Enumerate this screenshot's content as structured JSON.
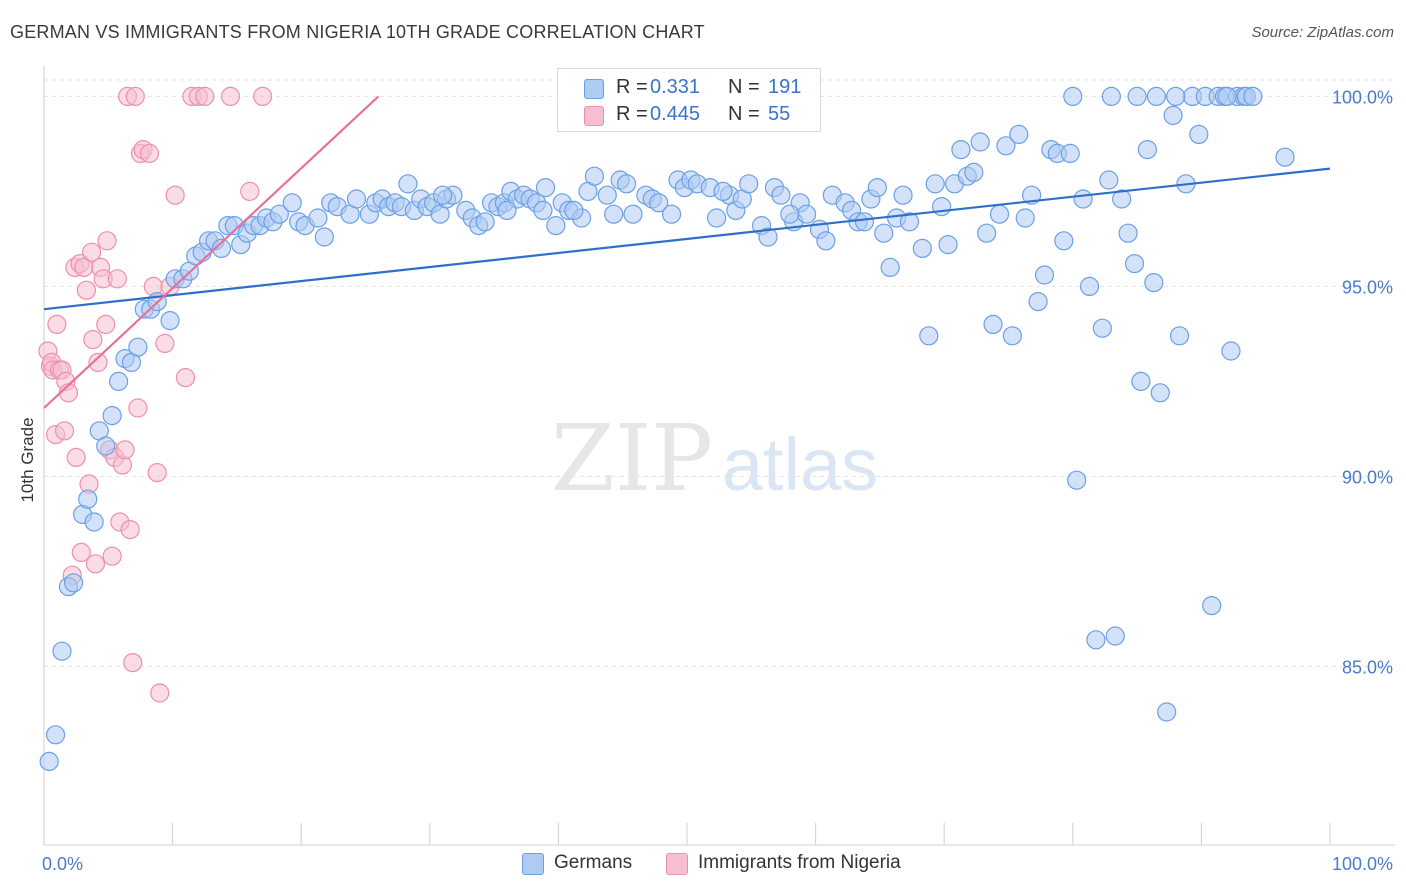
{
  "title": "GERMAN VS IMMIGRANTS FROM NIGERIA 10TH GRADE CORRELATION CHART",
  "source": "Source: ZipAtlas.com",
  "watermark": {
    "zip": "ZIP",
    "atlas": "atlas"
  },
  "colors": {
    "blue": "#6aa0e6",
    "blue_fill": "#aecbf2",
    "blue_line": "#2f6fcc",
    "pink": "#ee8fae",
    "pink_fill": "#f6bfd0",
    "pink_line": "#e8709a",
    "tick_text": "#4a7cc7",
    "grid": "#e3e3e3"
  },
  "legend": {
    "rows": [
      {
        "r_label": "R =",
        "r_value": "0.331",
        "n_label": "N =",
        "n_value": "191"
      },
      {
        "r_label": "R =",
        "r_value": "0.445",
        "n_label": "N =",
        "n_value": "55"
      }
    ],
    "bottom": [
      {
        "label": "Germans"
      },
      {
        "label": "Immigrants from Nigeria"
      }
    ]
  },
  "chart_data": {
    "type": "scatter",
    "title": "GERMAN VS IMMIGRANTS FROM NIGERIA 10TH GRADE CORRELATION CHART",
    "xlabel": "",
    "ylabel": "10th Grade",
    "xlim": [
      0,
      100
    ],
    "ylim": [
      80.3,
      100.8
    ],
    "x_tick_labels": [
      "0.0%",
      "100.0%"
    ],
    "y_ticks": [
      85,
      90,
      95,
      100
    ],
    "y_tick_labels": [
      "85.0%",
      "90.0%",
      "95.0%",
      "100.0%"
    ],
    "grid": true,
    "legend_position": "top-center",
    "series": [
      {
        "name": "Germans",
        "r": 0.331,
        "n": 191,
        "trend": {
          "x": [
            0,
            100
          ],
          "y": [
            94.4,
            98.1
          ]
        },
        "points": [
          [
            0.4,
            82.5
          ],
          [
            0.9,
            83.2
          ],
          [
            1.4,
            85.4
          ],
          [
            1.9,
            87.1
          ],
          [
            2.3,
            87.2
          ],
          [
            3.0,
            89.0
          ],
          [
            3.4,
            89.4
          ],
          [
            3.9,
            88.8
          ],
          [
            4.3,
            91.2
          ],
          [
            4.8,
            90.8
          ],
          [
            5.3,
            91.6
          ],
          [
            5.8,
            92.5
          ],
          [
            6.3,
            93.1
          ],
          [
            6.8,
            93.0
          ],
          [
            7.3,
            93.4
          ],
          [
            7.8,
            94.4
          ],
          [
            8.3,
            94.4
          ],
          [
            8.8,
            94.6
          ],
          [
            9.8,
            94.1
          ],
          [
            10.2,
            95.2
          ],
          [
            10.8,
            95.2
          ],
          [
            11.3,
            95.4
          ],
          [
            11.8,
            95.8
          ],
          [
            12.3,
            95.9
          ],
          [
            12.8,
            96.2
          ],
          [
            13.3,
            96.2
          ],
          [
            13.8,
            96.0
          ],
          [
            14.3,
            96.6
          ],
          [
            14.8,
            96.6
          ],
          [
            15.3,
            96.1
          ],
          [
            15.8,
            96.4
          ],
          [
            16.3,
            96.6
          ],
          [
            16.8,
            96.6
          ],
          [
            17.3,
            96.8
          ],
          [
            17.8,
            96.7
          ],
          [
            18.3,
            96.9
          ],
          [
            19.3,
            97.2
          ],
          [
            19.8,
            96.7
          ],
          [
            20.3,
            96.6
          ],
          [
            21.3,
            96.8
          ],
          [
            21.8,
            96.3
          ],
          [
            22.3,
            97.2
          ],
          [
            22.8,
            97.1
          ],
          [
            23.8,
            96.9
          ],
          [
            24.3,
            97.3
          ],
          [
            25.3,
            96.9
          ],
          [
            25.8,
            97.2
          ],
          [
            26.3,
            97.3
          ],
          [
            26.8,
            97.1
          ],
          [
            27.3,
            97.2
          ],
          [
            27.8,
            97.1
          ],
          [
            28.3,
            97.7
          ],
          [
            28.8,
            97.0
          ],
          [
            29.3,
            97.3
          ],
          [
            29.8,
            97.1
          ],
          [
            30.3,
            97.2
          ],
          [
            30.8,
            96.9
          ],
          [
            31.3,
            97.3
          ],
          [
            31.8,
            97.4
          ],
          [
            32.8,
            97.0
          ],
          [
            33.3,
            96.8
          ],
          [
            33.8,
            96.6
          ],
          [
            34.3,
            96.7
          ],
          [
            34.8,
            97.2
          ],
          [
            35.3,
            97.1
          ],
          [
            35.8,
            97.2
          ],
          [
            36.3,
            97.5
          ],
          [
            36.8,
            97.3
          ],
          [
            37.3,
            97.4
          ],
          [
            37.8,
            97.3
          ],
          [
            38.3,
            97.2
          ],
          [
            38.8,
            97.0
          ],
          [
            39.8,
            96.6
          ],
          [
            40.3,
            97.2
          ],
          [
            40.8,
            97.0
          ],
          [
            41.8,
            96.8
          ],
          [
            42.3,
            97.5
          ],
          [
            42.8,
            97.9
          ],
          [
            43.8,
            97.4
          ],
          [
            44.3,
            96.9
          ],
          [
            44.8,
            97.8
          ],
          [
            45.3,
            97.7
          ],
          [
            45.8,
            96.9
          ],
          [
            46.8,
            97.4
          ],
          [
            47.3,
            97.3
          ],
          [
            47.8,
            97.2
          ],
          [
            48.8,
            96.9
          ],
          [
            49.3,
            97.8
          ],
          [
            49.8,
            97.6
          ],
          [
            50.3,
            97.8
          ],
          [
            50.8,
            97.7
          ],
          [
            51.8,
            97.6
          ],
          [
            52.3,
            96.8
          ],
          [
            53.3,
            97.4
          ],
          [
            53.8,
            97.0
          ],
          [
            54.3,
            97.3
          ],
          [
            54.8,
            97.7
          ],
          [
            55.8,
            96.6
          ],
          [
            56.3,
            96.3
          ],
          [
            56.8,
            97.6
          ],
          [
            57.3,
            97.4
          ],
          [
            58.3,
            96.7
          ],
          [
            58.8,
            97.2
          ],
          [
            59.3,
            96.9
          ],
          [
            60.3,
            96.5
          ],
          [
            60.8,
            96.2
          ],
          [
            61.3,
            97.4
          ],
          [
            62.3,
            97.2
          ],
          [
            62.8,
            97.0
          ],
          [
            63.3,
            96.7
          ],
          [
            63.8,
            96.7
          ],
          [
            64.3,
            97.3
          ],
          [
            64.8,
            97.6
          ],
          [
            65.3,
            96.4
          ],
          [
            65.8,
            95.5
          ],
          [
            66.3,
            96.8
          ],
          [
            66.8,
            97.4
          ],
          [
            67.3,
            96.7
          ],
          [
            68.3,
            96.0
          ],
          [
            68.8,
            93.7
          ],
          [
            69.3,
            97.7
          ],
          [
            69.8,
            97.1
          ],
          [
            70.3,
            96.1
          ],
          [
            70.8,
            97.7
          ],
          [
            71.3,
            98.6
          ],
          [
            71.8,
            97.9
          ],
          [
            72.3,
            98.0
          ],
          [
            72.8,
            98.8
          ],
          [
            73.3,
            96.4
          ],
          [
            73.8,
            94.0
          ],
          [
            74.3,
            96.9
          ],
          [
            74.8,
            98.7
          ],
          [
            75.3,
            93.7
          ],
          [
            75.8,
            99.0
          ],
          [
            76.3,
            96.8
          ],
          [
            76.8,
            97.4
          ],
          [
            77.3,
            94.6
          ],
          [
            77.8,
            95.3
          ],
          [
            78.3,
            98.6
          ],
          [
            78.8,
            98.5
          ],
          [
            79.3,
            96.2
          ],
          [
            79.8,
            98.5
          ],
          [
            80.3,
            89.9
          ],
          [
            80.8,
            97.3
          ],
          [
            81.3,
            95.0
          ],
          [
            81.8,
            85.7
          ],
          [
            82.3,
            93.9
          ],
          [
            82.8,
            97.8
          ],
          [
            83.3,
            85.8
          ],
          [
            83.8,
            97.3
          ],
          [
            84.3,
            96.4
          ],
          [
            84.8,
            95.6
          ],
          [
            85.3,
            92.5
          ],
          [
            85.8,
            98.6
          ],
          [
            86.3,
            95.1
          ],
          [
            86.8,
            92.2
          ],
          [
            87.3,
            83.8
          ],
          [
            87.8,
            99.5
          ],
          [
            88.3,
            93.7
          ],
          [
            88.8,
            97.7
          ],
          [
            89.3,
            100.0
          ],
          [
            89.8,
            99.0
          ],
          [
            90.3,
            100.0
          ],
          [
            90.8,
            86.6
          ],
          [
            91.3,
            100.0
          ],
          [
            91.8,
            100.0
          ],
          [
            92.3,
            93.3
          ],
          [
            92.8,
            100.0
          ],
          [
            93.3,
            100.0
          ],
          [
            80.0,
            100.0
          ],
          [
            83.0,
            100.0
          ],
          [
            85.0,
            100.0
          ],
          [
            86.5,
            100.0
          ],
          [
            88.0,
            100.0
          ],
          [
            92.0,
            100.0
          ],
          [
            93.5,
            100.0
          ],
          [
            94.0,
            100.0
          ],
          [
            96.5,
            98.4
          ],
          [
            52.8,
            97.5
          ],
          [
            58.0,
            96.9
          ],
          [
            39.0,
            97.6
          ],
          [
            41.2,
            97.0
          ],
          [
            36.0,
            97.0
          ],
          [
            31.0,
            97.4
          ]
        ]
      },
      {
        "name": "Immigrants from Nigeria",
        "r": 0.445,
        "n": 55,
        "trend": {
          "x": [
            0,
            26
          ],
          "y": [
            91.8,
            100.0
          ]
        },
        "points": [
          [
            0.3,
            93.3
          ],
          [
            0.5,
            92.9
          ],
          [
            0.6,
            93.0
          ],
          [
            0.7,
            92.8
          ],
          [
            0.9,
            91.1
          ],
          [
            1.0,
            94.0
          ],
          [
            1.2,
            92.8
          ],
          [
            1.4,
            92.8
          ],
          [
            1.6,
            91.2
          ],
          [
            1.7,
            92.5
          ],
          [
            1.9,
            92.2
          ],
          [
            2.2,
            87.4
          ],
          [
            2.4,
            95.5
          ],
          [
            2.5,
            90.5
          ],
          [
            2.8,
            95.6
          ],
          [
            2.9,
            88.0
          ],
          [
            3.1,
            95.5
          ],
          [
            3.3,
            94.9
          ],
          [
            3.5,
            89.8
          ],
          [
            3.7,
            95.9
          ],
          [
            3.8,
            93.6
          ],
          [
            4.0,
            87.7
          ],
          [
            4.2,
            93.0
          ],
          [
            4.4,
            95.5
          ],
          [
            4.6,
            95.2
          ],
          [
            4.8,
            94.0
          ],
          [
            4.9,
            96.2
          ],
          [
            5.1,
            90.7
          ],
          [
            5.3,
            87.9
          ],
          [
            5.5,
            90.5
          ],
          [
            5.7,
            95.2
          ],
          [
            5.9,
            88.8
          ],
          [
            6.1,
            90.3
          ],
          [
            6.3,
            90.7
          ],
          [
            6.5,
            100.0
          ],
          [
            6.7,
            88.6
          ],
          [
            6.9,
            85.1
          ],
          [
            7.1,
            100.0
          ],
          [
            7.3,
            91.8
          ],
          [
            7.5,
            98.5
          ],
          [
            7.7,
            98.6
          ],
          [
            8.2,
            98.5
          ],
          [
            8.5,
            95.0
          ],
          [
            8.8,
            90.1
          ],
          [
            9.0,
            84.3
          ],
          [
            9.4,
            93.5
          ],
          [
            9.8,
            95.0
          ],
          [
            10.2,
            97.4
          ],
          [
            11.0,
            92.6
          ],
          [
            11.5,
            100.0
          ],
          [
            12.0,
            100.0
          ],
          [
            12.5,
            100.0
          ],
          [
            14.5,
            100.0
          ],
          [
            16.0,
            97.5
          ],
          [
            17.0,
            100.0
          ]
        ]
      }
    ]
  }
}
